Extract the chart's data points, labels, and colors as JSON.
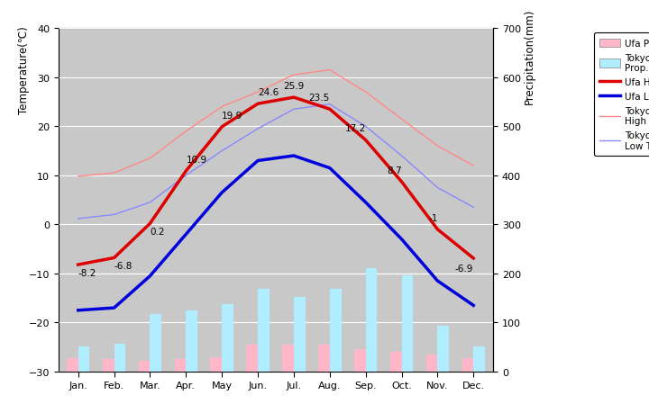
{
  "months": [
    "Jan.",
    "Feb.",
    "Mar.",
    "Apr.",
    "May",
    "Jun.",
    "Jul.",
    "Aug.",
    "Sep.",
    "Oct.",
    "Nov.",
    "Dec."
  ],
  "ufa_high": [
    -8.2,
    -6.8,
    0.2,
    10.9,
    19.9,
    24.6,
    25.9,
    23.5,
    17.2,
    8.7,
    -1.0,
    -6.9
  ],
  "ufa_low": [
    -17.5,
    -17.0,
    -10.5,
    -2.0,
    6.5,
    13.0,
    14.0,
    11.5,
    4.5,
    -3.0,
    -11.5,
    -16.5
  ],
  "tokyo_high": [
    9.8,
    10.5,
    13.5,
    19.0,
    24.0,
    27.0,
    30.5,
    31.5,
    27.0,
    21.5,
    16.0,
    12.0
  ],
  "tokyo_low": [
    1.2,
    2.0,
    4.5,
    10.0,
    15.0,
    19.5,
    23.5,
    24.5,
    20.0,
    14.0,
    7.5,
    3.5
  ],
  "ufa_precip_mm": [
    28,
    25,
    22,
    25,
    30,
    55,
    55,
    55,
    45,
    40,
    35,
    28
  ],
  "tokyo_precip_mm": [
    52,
    56,
    118,
    125,
    138,
    168,
    153,
    168,
    210,
    197,
    93,
    51
  ],
  "ufa_high_labels": [
    "-8.2",
    "-6.8",
    "0.2",
    "10.9",
    "19.9",
    "24.6",
    "25.9",
    "23.5",
    "17.2",
    "8.7",
    "-1",
    "-6.9"
  ],
  "ufa_high_color": "#dd0000",
  "ufa_low_color": "#0000dd",
  "tokyo_high_color": "#ff8888",
  "tokyo_low_color": "#8888ff",
  "ufa_precip_color": "#ffb6c8",
  "tokyo_precip_color": "#b0eeff",
  "bg_color": "#c8c8c8",
  "temp_ylim": [
    -30,
    40
  ],
  "precip_ylim": [
    0,
    700
  ],
  "title_left": "Temperature(℃)",
  "title_right": "Precipitation(mm)",
  "grid_color": "#ffffff",
  "label_offsets": [
    [
      0,
      -8.2,
      -2.5,
      "left"
    ],
    [
      1,
      -6.8,
      -2.5,
      "left"
    ],
    [
      2,
      0.2,
      -2.5,
      "left"
    ],
    [
      3,
      10.9,
      1.5,
      "left"
    ],
    [
      4,
      19.9,
      1.5,
      "left"
    ],
    [
      5,
      24.6,
      1.5,
      "left"
    ],
    [
      6,
      25.9,
      1.5,
      "center"
    ],
    [
      7,
      23.5,
      1.5,
      "right"
    ],
    [
      8,
      17.2,
      1.5,
      "right"
    ],
    [
      9,
      8.7,
      1.5,
      "right"
    ],
    [
      10,
      -1.0,
      1.5,
      "right"
    ],
    [
      11,
      -6.9,
      -3.0,
      "right"
    ]
  ]
}
